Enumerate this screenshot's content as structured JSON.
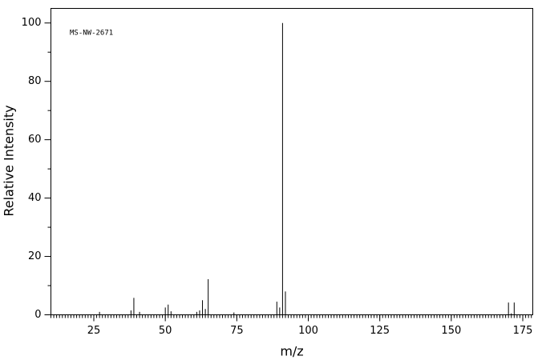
{
  "chart_data": {
    "type": "stem",
    "annotation": "MS-NW-2671",
    "x_label": "m/z",
    "y_label": "Relative Intensity",
    "x": [
      27,
      38,
      39,
      41,
      50,
      51,
      52,
      61,
      62,
      63,
      64,
      65,
      74,
      89,
      90,
      91,
      92,
      170,
      171,
      172
    ],
    "values": [
      1,
      1.5,
      5.8,
      1,
      2.5,
      3.5,
      1.2,
      1,
      1.5,
      5,
      2,
      12.2,
      0.8,
      4.5,
      2.5,
      100,
      8,
      4.2,
      0.5,
      4.2
    ],
    "color": "#000000",
    "xlim": [
      10,
      178.5
    ],
    "ylim": [
      0,
      105
    ],
    "xticks": [
      25,
      50,
      75,
      100,
      125,
      150,
      175
    ],
    "yticks": [
      0,
      20,
      40,
      60,
      80,
      100
    ]
  }
}
